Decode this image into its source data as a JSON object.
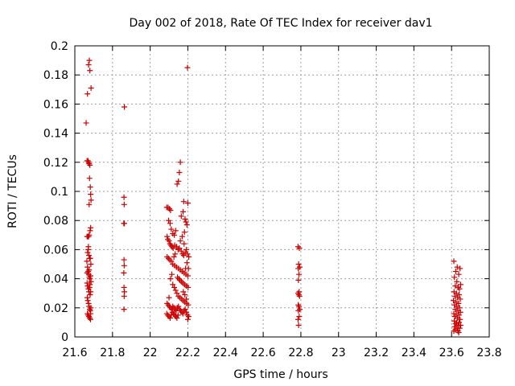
{
  "chart_data": {
    "type": "scatter",
    "title": "Day 002 of 2018, Rate Of TEC Index for receiver dav1",
    "xlabel": "GPS time / hours",
    "ylabel": "ROTI / TECUs",
    "xlim": [
      21.6,
      23.8
    ],
    "ylim": [
      0,
      0.2
    ],
    "xticks": [
      "21.6",
      "21.8",
      "22",
      "22.2",
      "22.4",
      "22.6",
      "22.8",
      "23",
      "23.2",
      "23.4",
      "23.6",
      "23.8"
    ],
    "yticks": [
      "0",
      "0.02",
      "0.04",
      "0.06",
      "0.08",
      "0.1",
      "0.12",
      "0.14",
      "0.16",
      "0.18",
      "0.2"
    ],
    "grid": true,
    "marker": "+",
    "series": [
      {
        "name": "dav1",
        "color": "#cc0000",
        "points": [
          [
            21.66,
            0.147
          ],
          [
            21.665,
            0.121
          ],
          [
            21.67,
            0.121
          ],
          [
            21.673,
            0.12
          ],
          [
            21.676,
            0.119
          ],
          [
            21.68,
            0.118
          ],
          [
            21.667,
            0.167
          ],
          [
            21.673,
            0.187
          ],
          [
            21.677,
            0.19
          ],
          [
            21.68,
            0.183
          ],
          [
            21.686,
            0.171
          ],
          [
            21.678,
            0.109
          ],
          [
            21.682,
            0.103
          ],
          [
            21.684,
            0.098
          ],
          [
            21.686,
            0.094
          ],
          [
            21.676,
            0.091
          ],
          [
            21.684,
            0.075
          ],
          [
            21.681,
            0.073
          ],
          [
            21.665,
            0.069
          ],
          [
            21.669,
            0.069
          ],
          [
            21.673,
            0.069
          ],
          [
            21.676,
            0.07
          ],
          [
            21.671,
            0.06
          ],
          [
            21.675,
            0.056
          ],
          [
            21.678,
            0.054
          ],
          [
            21.682,
            0.054
          ],
          [
            21.685,
            0.05
          ],
          [
            21.664,
            0.052
          ],
          [
            21.667,
            0.048
          ],
          [
            21.671,
            0.045
          ],
          [
            21.674,
            0.043
          ],
          [
            21.677,
            0.041
          ],
          [
            21.68,
            0.04
          ],
          [
            21.683,
            0.042
          ],
          [
            21.686,
            0.038
          ],
          [
            21.665,
            0.037
          ],
          [
            21.668,
            0.035
          ],
          [
            21.672,
            0.033
          ],
          [
            21.675,
            0.031
          ],
          [
            21.678,
            0.034
          ],
          [
            21.681,
            0.029
          ],
          [
            21.684,
            0.031
          ],
          [
            21.666,
            0.027
          ],
          [
            21.669,
            0.025
          ],
          [
            21.673,
            0.023
          ],
          [
            21.676,
            0.021
          ],
          [
            21.679,
            0.019
          ],
          [
            21.682,
            0.018
          ],
          [
            21.685,
            0.02
          ],
          [
            21.667,
            0.016
          ],
          [
            21.671,
            0.015
          ],
          [
            21.675,
            0.014
          ],
          [
            21.679,
            0.013
          ],
          [
            21.683,
            0.012
          ],
          [
            21.672,
            0.062
          ],
          [
            21.668,
            0.058
          ],
          [
            21.676,
            0.046
          ],
          [
            21.68,
            0.036
          ],
          [
            21.684,
            0.016
          ],
          [
            21.665,
            0.044
          ],
          [
            21.863,
            0.158
          ],
          [
            21.861,
            0.096
          ],
          [
            21.862,
            0.091
          ],
          [
            21.863,
            0.078
          ],
          [
            21.86,
            0.078
          ],
          [
            21.861,
            0.053
          ],
          [
            21.862,
            0.049
          ],
          [
            21.86,
            0.044
          ],
          [
            21.861,
            0.034
          ],
          [
            21.863,
            0.031
          ],
          [
            21.862,
            0.028
          ],
          [
            21.861,
            0.019
          ],
          [
            22.198,
            0.185
          ],
          [
            22.16,
            0.12
          ],
          [
            22.155,
            0.113
          ],
          [
            22.15,
            0.107
          ],
          [
            22.143,
            0.105
          ],
          [
            22.178,
            0.093
          ],
          [
            22.2,
            0.092
          ],
          [
            22.088,
            0.089
          ],
          [
            22.095,
            0.089
          ],
          [
            22.102,
            0.088
          ],
          [
            22.108,
            0.087
          ],
          [
            22.175,
            0.086
          ],
          [
            22.165,
            0.083
          ],
          [
            22.185,
            0.081
          ],
          [
            22.19,
            0.079
          ],
          [
            22.195,
            0.077
          ],
          [
            22.098,
            0.08
          ],
          [
            22.106,
            0.078
          ],
          [
            22.112,
            0.074
          ],
          [
            22.12,
            0.071
          ],
          [
            22.128,
            0.07
          ],
          [
            22.135,
            0.073
          ],
          [
            22.182,
            0.072
          ],
          [
            22.09,
            0.069
          ],
          [
            22.094,
            0.067
          ],
          [
            22.1,
            0.066
          ],
          [
            22.105,
            0.064
          ],
          [
            22.11,
            0.063
          ],
          [
            22.116,
            0.062
          ],
          [
            22.122,
            0.061
          ],
          [
            22.13,
            0.063
          ],
          [
            22.14,
            0.062
          ],
          [
            22.148,
            0.06
          ],
          [
            22.155,
            0.061
          ],
          [
            22.165,
            0.059
          ],
          [
            22.172,
            0.057
          ],
          [
            22.178,
            0.056
          ],
          [
            22.186,
            0.058
          ],
          [
            22.192,
            0.06
          ],
          [
            22.198,
            0.057
          ],
          [
            22.205,
            0.055
          ],
          [
            22.09,
            0.055
          ],
          [
            22.097,
            0.054
          ],
          [
            22.104,
            0.053
          ],
          [
            22.112,
            0.052
          ],
          [
            22.12,
            0.05
          ],
          [
            22.13,
            0.049
          ],
          [
            22.14,
            0.048
          ],
          [
            22.15,
            0.047
          ],
          [
            22.16,
            0.046
          ],
          [
            22.17,
            0.045
          ],
          [
            22.18,
            0.044
          ],
          [
            22.19,
            0.043
          ],
          [
            22.2,
            0.042
          ],
          [
            22.145,
            0.041
          ],
          [
            22.152,
            0.04
          ],
          [
            22.158,
            0.039
          ],
          [
            22.166,
            0.038
          ],
          [
            22.174,
            0.037
          ],
          [
            22.183,
            0.036
          ],
          [
            22.192,
            0.035
          ],
          [
            22.201,
            0.034
          ],
          [
            22.12,
            0.036
          ],
          [
            22.128,
            0.034
          ],
          [
            22.135,
            0.032
          ],
          [
            22.142,
            0.03
          ],
          [
            22.15,
            0.028
          ],
          [
            22.158,
            0.027
          ],
          [
            22.167,
            0.026
          ],
          [
            22.175,
            0.025
          ],
          [
            22.184,
            0.024
          ],
          [
            22.193,
            0.023
          ],
          [
            22.202,
            0.022
          ],
          [
            22.09,
            0.023
          ],
          [
            22.096,
            0.022
          ],
          [
            22.102,
            0.021
          ],
          [
            22.108,
            0.02
          ],
          [
            22.114,
            0.019
          ],
          [
            22.12,
            0.021
          ],
          [
            22.126,
            0.02
          ],
          [
            22.132,
            0.019
          ],
          [
            22.138,
            0.018
          ],
          [
            22.144,
            0.02
          ],
          [
            22.15,
            0.021
          ],
          [
            22.156,
            0.019
          ],
          [
            22.162,
            0.018
          ],
          [
            22.168,
            0.017
          ],
          [
            22.174,
            0.016
          ],
          [
            22.18,
            0.018
          ],
          [
            22.186,
            0.019
          ],
          [
            22.192,
            0.017
          ],
          [
            22.198,
            0.015
          ],
          [
            22.204,
            0.014
          ],
          [
            22.088,
            0.016
          ],
          [
            22.094,
            0.015
          ],
          [
            22.1,
            0.014
          ],
          [
            22.106,
            0.013
          ],
          [
            22.112,
            0.015
          ],
          [
            22.118,
            0.017
          ],
          [
            22.124,
            0.016
          ],
          [
            22.13,
            0.015
          ],
          [
            22.136,
            0.014
          ],
          [
            22.142,
            0.013
          ],
          [
            22.148,
            0.015
          ],
          [
            22.2,
            0.012
          ],
          [
            22.192,
            0.026
          ],
          [
            22.184,
            0.029
          ],
          [
            22.176,
            0.031
          ],
          [
            22.188,
            0.047
          ],
          [
            22.195,
            0.051
          ],
          [
            22.203,
            0.047
          ],
          [
            22.16,
            0.066
          ],
          [
            22.17,
            0.069
          ],
          [
            22.18,
            0.064
          ],
          [
            22.126,
            0.055
          ],
          [
            22.133,
            0.057
          ],
          [
            22.115,
            0.043
          ],
          [
            22.108,
            0.04
          ],
          [
            22.1,
            0.027
          ],
          [
            22.785,
            0.062
          ],
          [
            22.792,
            0.061
          ],
          [
            22.788,
            0.05
          ],
          [
            22.794,
            0.048
          ],
          [
            22.786,
            0.047
          ],
          [
            22.79,
            0.043
          ],
          [
            22.787,
            0.039
          ],
          [
            22.791,
            0.031
          ],
          [
            22.785,
            0.03
          ],
          [
            22.789,
            0.029
          ],
          [
            22.793,
            0.028
          ],
          [
            22.786,
            0.022
          ],
          [
            22.79,
            0.021
          ],
          [
            22.794,
            0.019
          ],
          [
            22.787,
            0.018
          ],
          [
            22.791,
            0.014
          ],
          [
            22.785,
            0.012
          ],
          [
            22.788,
            0.008
          ],
          [
            23.612,
            0.052
          ],
          [
            23.63,
            0.048
          ],
          [
            23.645,
            0.047
          ],
          [
            23.622,
            0.045
          ],
          [
            23.638,
            0.043
          ],
          [
            23.615,
            0.041
          ],
          [
            23.628,
            0.038
          ],
          [
            23.648,
            0.036
          ],
          [
            23.62,
            0.035
          ],
          [
            23.635,
            0.034
          ],
          [
            23.642,
            0.033
          ],
          [
            23.613,
            0.031
          ],
          [
            23.626,
            0.03
          ],
          [
            23.64,
            0.029
          ],
          [
            23.618,
            0.028
          ],
          [
            23.632,
            0.027
          ],
          [
            23.646,
            0.026
          ],
          [
            23.61,
            0.025
          ],
          [
            23.624,
            0.024
          ],
          [
            23.637,
            0.023
          ],
          [
            23.615,
            0.022
          ],
          [
            23.628,
            0.021
          ],
          [
            23.643,
            0.02
          ],
          [
            23.62,
            0.019
          ],
          [
            23.634,
            0.018
          ],
          [
            23.647,
            0.017
          ],
          [
            23.612,
            0.016
          ],
          [
            23.625,
            0.016
          ],
          [
            23.639,
            0.015
          ],
          [
            23.618,
            0.014
          ],
          [
            23.631,
            0.013
          ],
          [
            23.645,
            0.012
          ],
          [
            23.614,
            0.011
          ],
          [
            23.627,
            0.01
          ],
          [
            23.64,
            0.01
          ],
          [
            23.621,
            0.009
          ],
          [
            23.635,
            0.008
          ],
          [
            23.648,
            0.008
          ],
          [
            23.616,
            0.007
          ],
          [
            23.629,
            0.006
          ],
          [
            23.643,
            0.006
          ],
          [
            23.62,
            0.005
          ],
          [
            23.634,
            0.004
          ],
          [
            23.612,
            0.004
          ],
          [
            23.638,
            0.003
          ]
        ]
      }
    ]
  }
}
